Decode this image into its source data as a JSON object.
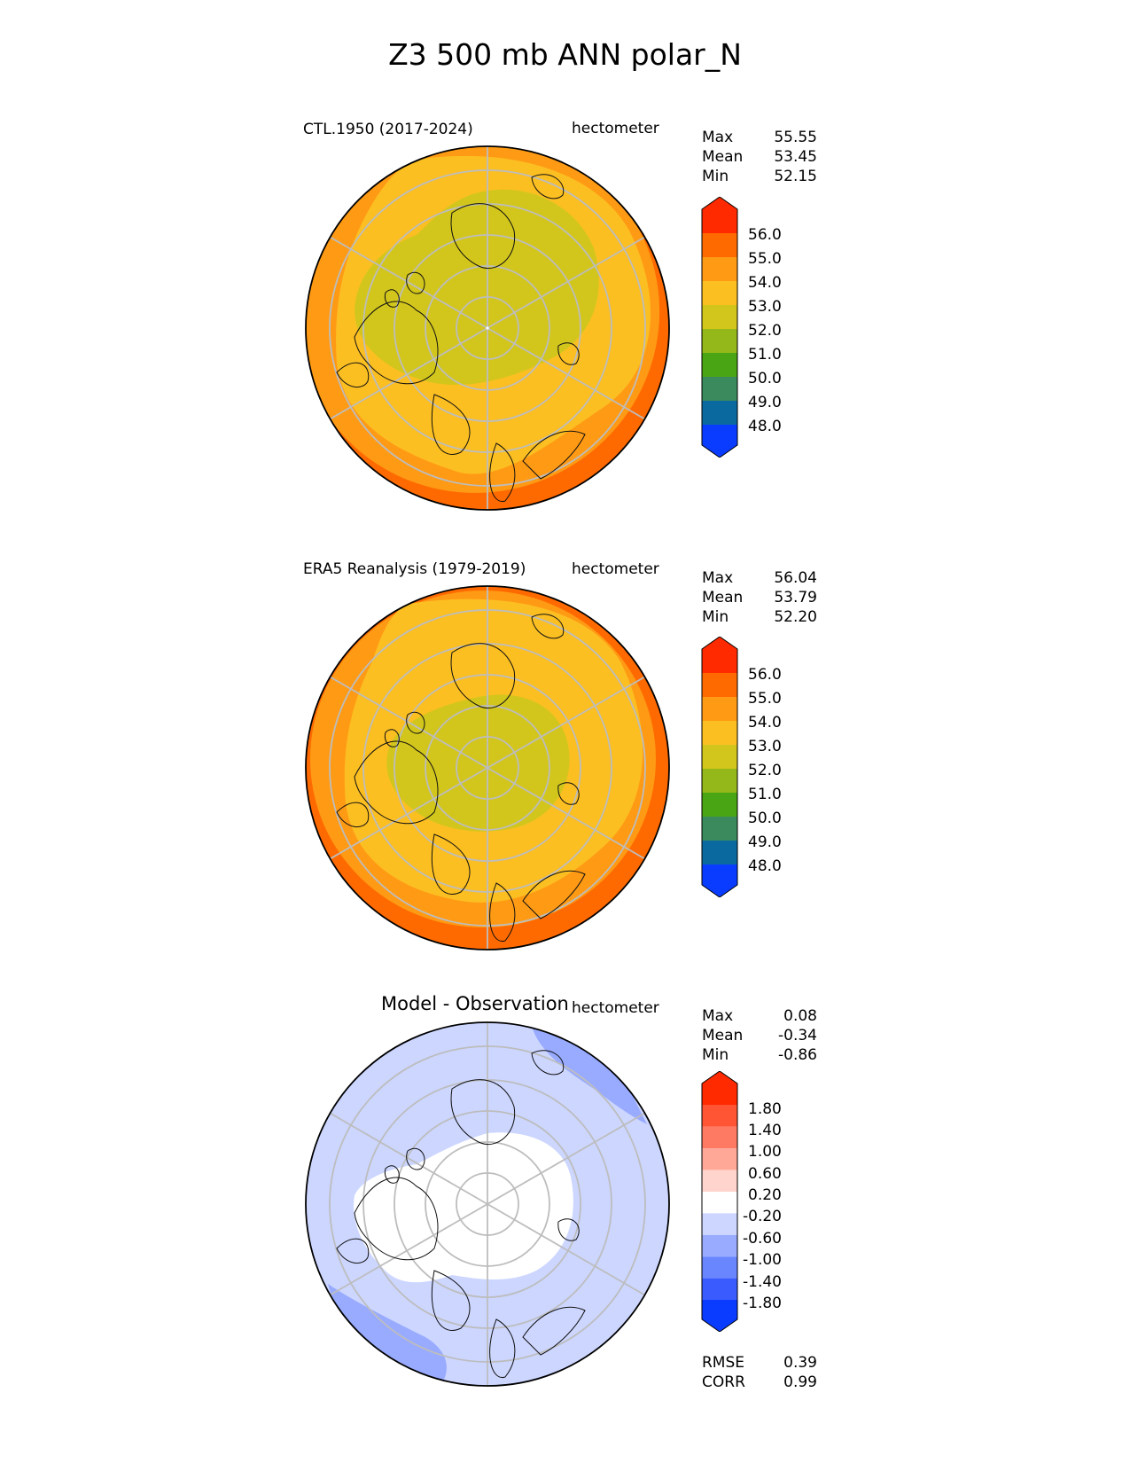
{
  "title": "Z3 500 mb ANN polar_N",
  "panels": [
    {
      "id": "model",
      "left_label": "CTL.1950 (2017-2024)",
      "units": "hectometer",
      "stats": [
        {
          "label": "Max",
          "value": "55.55"
        },
        {
          "label": "Mean",
          "value": "53.45"
        },
        {
          "label": "Min",
          "value": "52.15"
        }
      ]
    },
    {
      "id": "obs",
      "left_label": "ERA5 Reanalysis (1979-2019)",
      "units": "hectometer",
      "stats": [
        {
          "label": "Max",
          "value": "56.04"
        },
        {
          "label": "Mean",
          "value": "53.79"
        },
        {
          "label": "Min",
          "value": "52.20"
        }
      ]
    },
    {
      "id": "diff",
      "center_label": "Model - Observation",
      "units": "hectometer",
      "stats": [
        {
          "label": "Max",
          "value": "0.08"
        },
        {
          "label": "Mean",
          "value": "-0.34"
        },
        {
          "label": "Min",
          "value": "-0.86"
        }
      ],
      "metrics": [
        {
          "label": "RMSE",
          "value": "0.39"
        },
        {
          "label": "CORR",
          "value": "0.99"
        }
      ]
    }
  ],
  "colorbars": {
    "absolute": {
      "ticks": [
        "56.0",
        "55.0",
        "54.0",
        "53.0",
        "52.0",
        "51.0",
        "50.0",
        "49.0",
        "48.0"
      ],
      "colors": [
        "#ff2a00",
        "#ff6a00",
        "#ff9a14",
        "#fcbf22",
        "#d2c61c",
        "#94b81a",
        "#4aa514",
        "#3a8a5e",
        "#0a6aa0",
        "#0a3cff"
      ]
    },
    "difference": {
      "ticks": [
        "1.80",
        "1.40",
        "1.00",
        "0.60",
        "0.20",
        "-0.20",
        "-0.60",
        "-1.00",
        "-1.40",
        "-1.80"
      ],
      "colors": [
        "#ff2a00",
        "#ff5535",
        "#ff7a62",
        "#ffa898",
        "#ffd4cc",
        "#ffffff",
        "#ccd6ff",
        "#99abff",
        "#6a86ff",
        "#3a5cff",
        "#0a3cff"
      ]
    }
  },
  "chart_data": [
    {
      "type": "heatmap",
      "projection": "north polar stereographic",
      "title": "CTL.1950 (2017-2024)",
      "units": "hectometer",
      "levels": [
        48,
        49,
        50,
        51,
        52,
        53,
        54,
        55,
        56
      ],
      "field_max": 55.55,
      "field_mean": 53.45,
      "field_min": 52.15
    },
    {
      "type": "heatmap",
      "projection": "north polar stereographic",
      "title": "ERA5 Reanalysis (1979-2019)",
      "units": "hectometer",
      "levels": [
        48,
        49,
        50,
        51,
        52,
        53,
        54,
        55,
        56
      ],
      "field_max": 56.04,
      "field_mean": 53.79,
      "field_min": 52.2
    },
    {
      "type": "heatmap",
      "projection": "north polar stereographic",
      "title": "Model - Observation",
      "units": "hectometer",
      "levels": [
        -1.8,
        -1.4,
        -1.0,
        -0.6,
        -0.2,
        0.2,
        0.6,
        1.0,
        1.4,
        1.8
      ],
      "field_max": 0.08,
      "field_mean": -0.34,
      "field_min": -0.86,
      "rmse": 0.39,
      "corr": 0.99
    }
  ]
}
